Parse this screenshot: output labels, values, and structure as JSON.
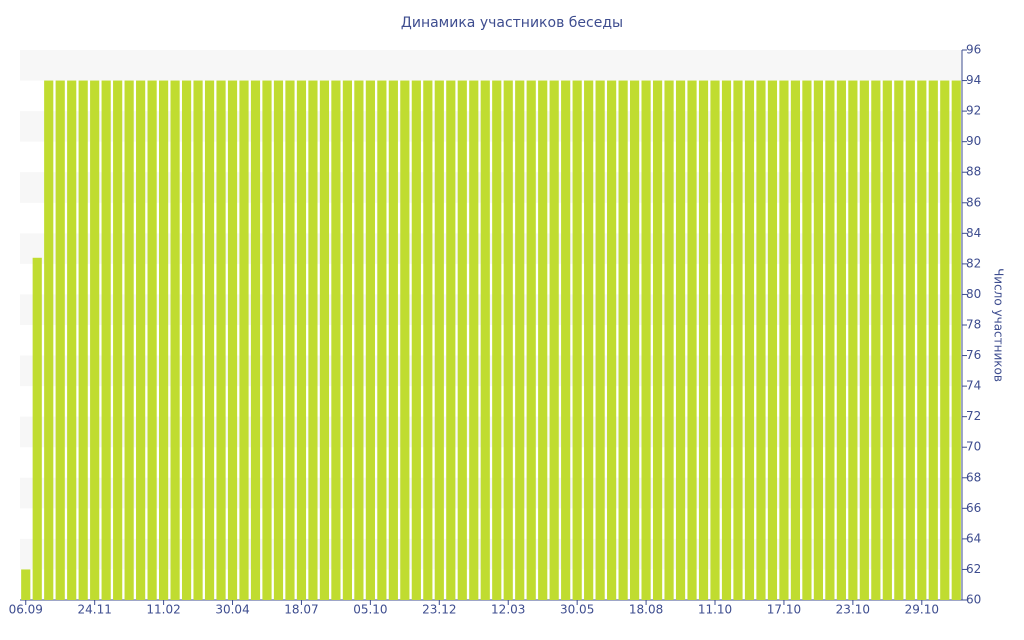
{
  "chart_data": {
    "type": "bar",
    "title": "Динамика участников беседы",
    "y_axis_label": "Число участников",
    "categories": [
      "06.09",
      null,
      null,
      null,
      null,
      null,
      "24.11",
      null,
      null,
      null,
      null,
      null,
      "11.02",
      null,
      null,
      null,
      null,
      null,
      "30.04",
      null,
      null,
      null,
      null,
      null,
      "18.07",
      null,
      null,
      null,
      null,
      null,
      "05.10",
      null,
      null,
      null,
      null,
      null,
      "23.12",
      null,
      null,
      null,
      null,
      null,
      "12.03",
      null,
      null,
      null,
      null,
      null,
      "30.05",
      null,
      null,
      null,
      null,
      null,
      "18.08",
      null,
      null,
      null,
      null,
      null,
      "11.10",
      null,
      null,
      null,
      null,
      null,
      "17.10",
      null,
      null,
      null,
      null,
      null,
      "23.10",
      null,
      null,
      null,
      null,
      null,
      "29.10",
      null,
      null,
      null
    ],
    "values": [
      62,
      82.4,
      94,
      94,
      94,
      94,
      94,
      94,
      94,
      94,
      94,
      94,
      94,
      94,
      94,
      94,
      94,
      94,
      94,
      94,
      94,
      94,
      94,
      94,
      94,
      94,
      94,
      94,
      94,
      94,
      94,
      94,
      94,
      94,
      94,
      94,
      94,
      94,
      94,
      94,
      94,
      94,
      94,
      94,
      94,
      94,
      94,
      94,
      94,
      94,
      94,
      94,
      94,
      94,
      94,
      94,
      94,
      94,
      94,
      94,
      94,
      94,
      94,
      94,
      94,
      94,
      94,
      94,
      94,
      94,
      94,
      94,
      94,
      94,
      94,
      94,
      94,
      94,
      94,
      94,
      94,
      94
    ],
    "color": "#c0dc30",
    "ylim": [
      60,
      96
    ],
    "yticks": [
      60,
      62,
      64,
      66,
      68,
      70,
      72,
      74,
      76,
      78,
      80,
      82,
      84,
      86,
      88,
      90,
      92,
      94,
      96
    ],
    "y_axis_side": "right"
  }
}
